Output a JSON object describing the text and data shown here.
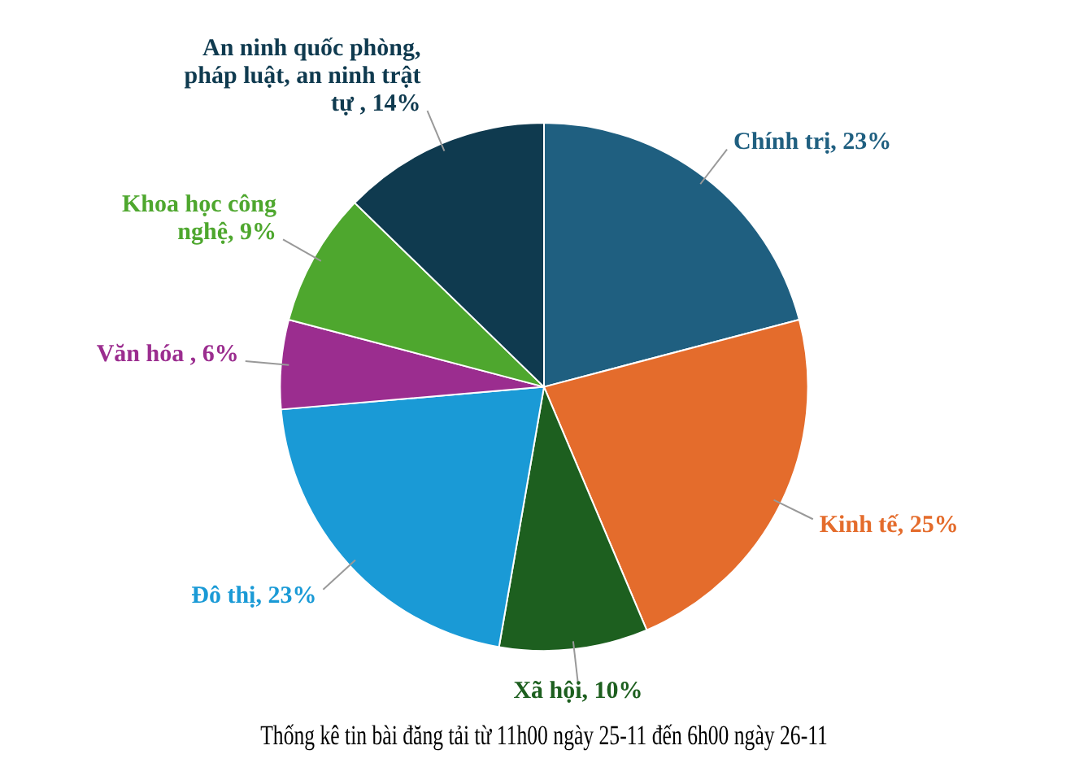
{
  "chart_data": {
    "type": "pie",
    "title": "Thống kê tin bài đăng tải từ 11h00 ngày 25-11 đến 6h00 ngày 26-11",
    "categories": [
      "Chính trị",
      "Kinh tế",
      "Xã hội",
      "Đô thị",
      "Văn hóa ",
      "Khoa học công nghệ",
      "An ninh quốc phòng, pháp luật, an ninh trật tự "
    ],
    "values": [
      23,
      25,
      10,
      23,
      6,
      9,
      14
    ],
    "value_labels": [
      "23%",
      "25%",
      "10%",
      "23%",
      "6%",
      "9%",
      "14%"
    ],
    "colors": [
      "#1f5f80",
      "#e46c2c",
      "#1d5f1f",
      "#1a9ad6",
      "#9b2d8f",
      "#4ea72e",
      "#0f3a4f"
    ],
    "legend": false
  }
}
